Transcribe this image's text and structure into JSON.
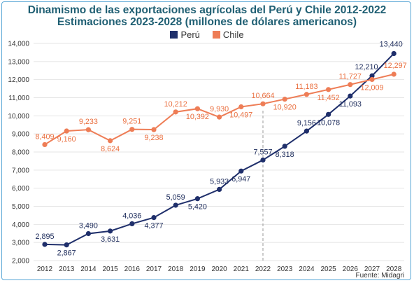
{
  "title": "Dinamismo de las exportaciones agrícolas del Perú y Chile 2012-2022",
  "subtitle": "Estimaciones 2023-2028 (millones de dólares americanos)",
  "source": "Fuente: Midagri",
  "colors": {
    "peru": "#1f2f6b",
    "chile": "#ee7d56",
    "title": "#1f5f73",
    "grid": "#e4e4e4",
    "divider": "#999999",
    "border": "#5aa7d6"
  },
  "chart_data": {
    "type": "line",
    "x": [
      "2012",
      "2013",
      "2014",
      "2015",
      "2016",
      "2017",
      "2018",
      "2019",
      "2020",
      "2021",
      "2022",
      "2023",
      "2024",
      "2025",
      "2026",
      "2027",
      "2028"
    ],
    "ylim": [
      2000,
      14000
    ],
    "yticks": [
      "2,000",
      "3,000",
      "4,000",
      "5,000",
      "6,000",
      "7,000",
      "8,000",
      "9,000",
      "10,000",
      "11,000",
      "12,000",
      "13,000",
      "14,000"
    ],
    "grid": true,
    "legend_position": "top-center",
    "divider_after": "2022",
    "series": [
      {
        "name": "Perú",
        "values": [
          2895,
          2867,
          3490,
          3631,
          4036,
          4377,
          5059,
          5420,
          5933,
          6947,
          7557,
          8318,
          9156,
          10078,
          11093,
          12210,
          13440
        ],
        "labels": [
          "2,895",
          "2,867",
          "3,490",
          "3,631",
          "4,036",
          "4,377",
          "5,059",
          "5,420",
          "5,933",
          "6,947",
          "7,557",
          "8,318",
          "9,156",
          "10,078",
          "11,093",
          "12,210",
          "13,440"
        ]
      },
      {
        "name": "Chile",
        "values": [
          8409,
          9160,
          9233,
          8624,
          9251,
          9238,
          10212,
          10392,
          9930,
          10497,
          10664,
          10920,
          11183,
          11452,
          11727,
          12009,
          12297
        ],
        "labels": [
          "8,409",
          "9,160",
          "9,233",
          "8,624",
          "9,251",
          "9,238",
          "10,212",
          "10,392",
          "9,930",
          "10,497",
          "10,664",
          "10,920",
          "11,183",
          "11,452",
          "11,727",
          "12,009",
          "12,297"
        ]
      }
    ]
  }
}
